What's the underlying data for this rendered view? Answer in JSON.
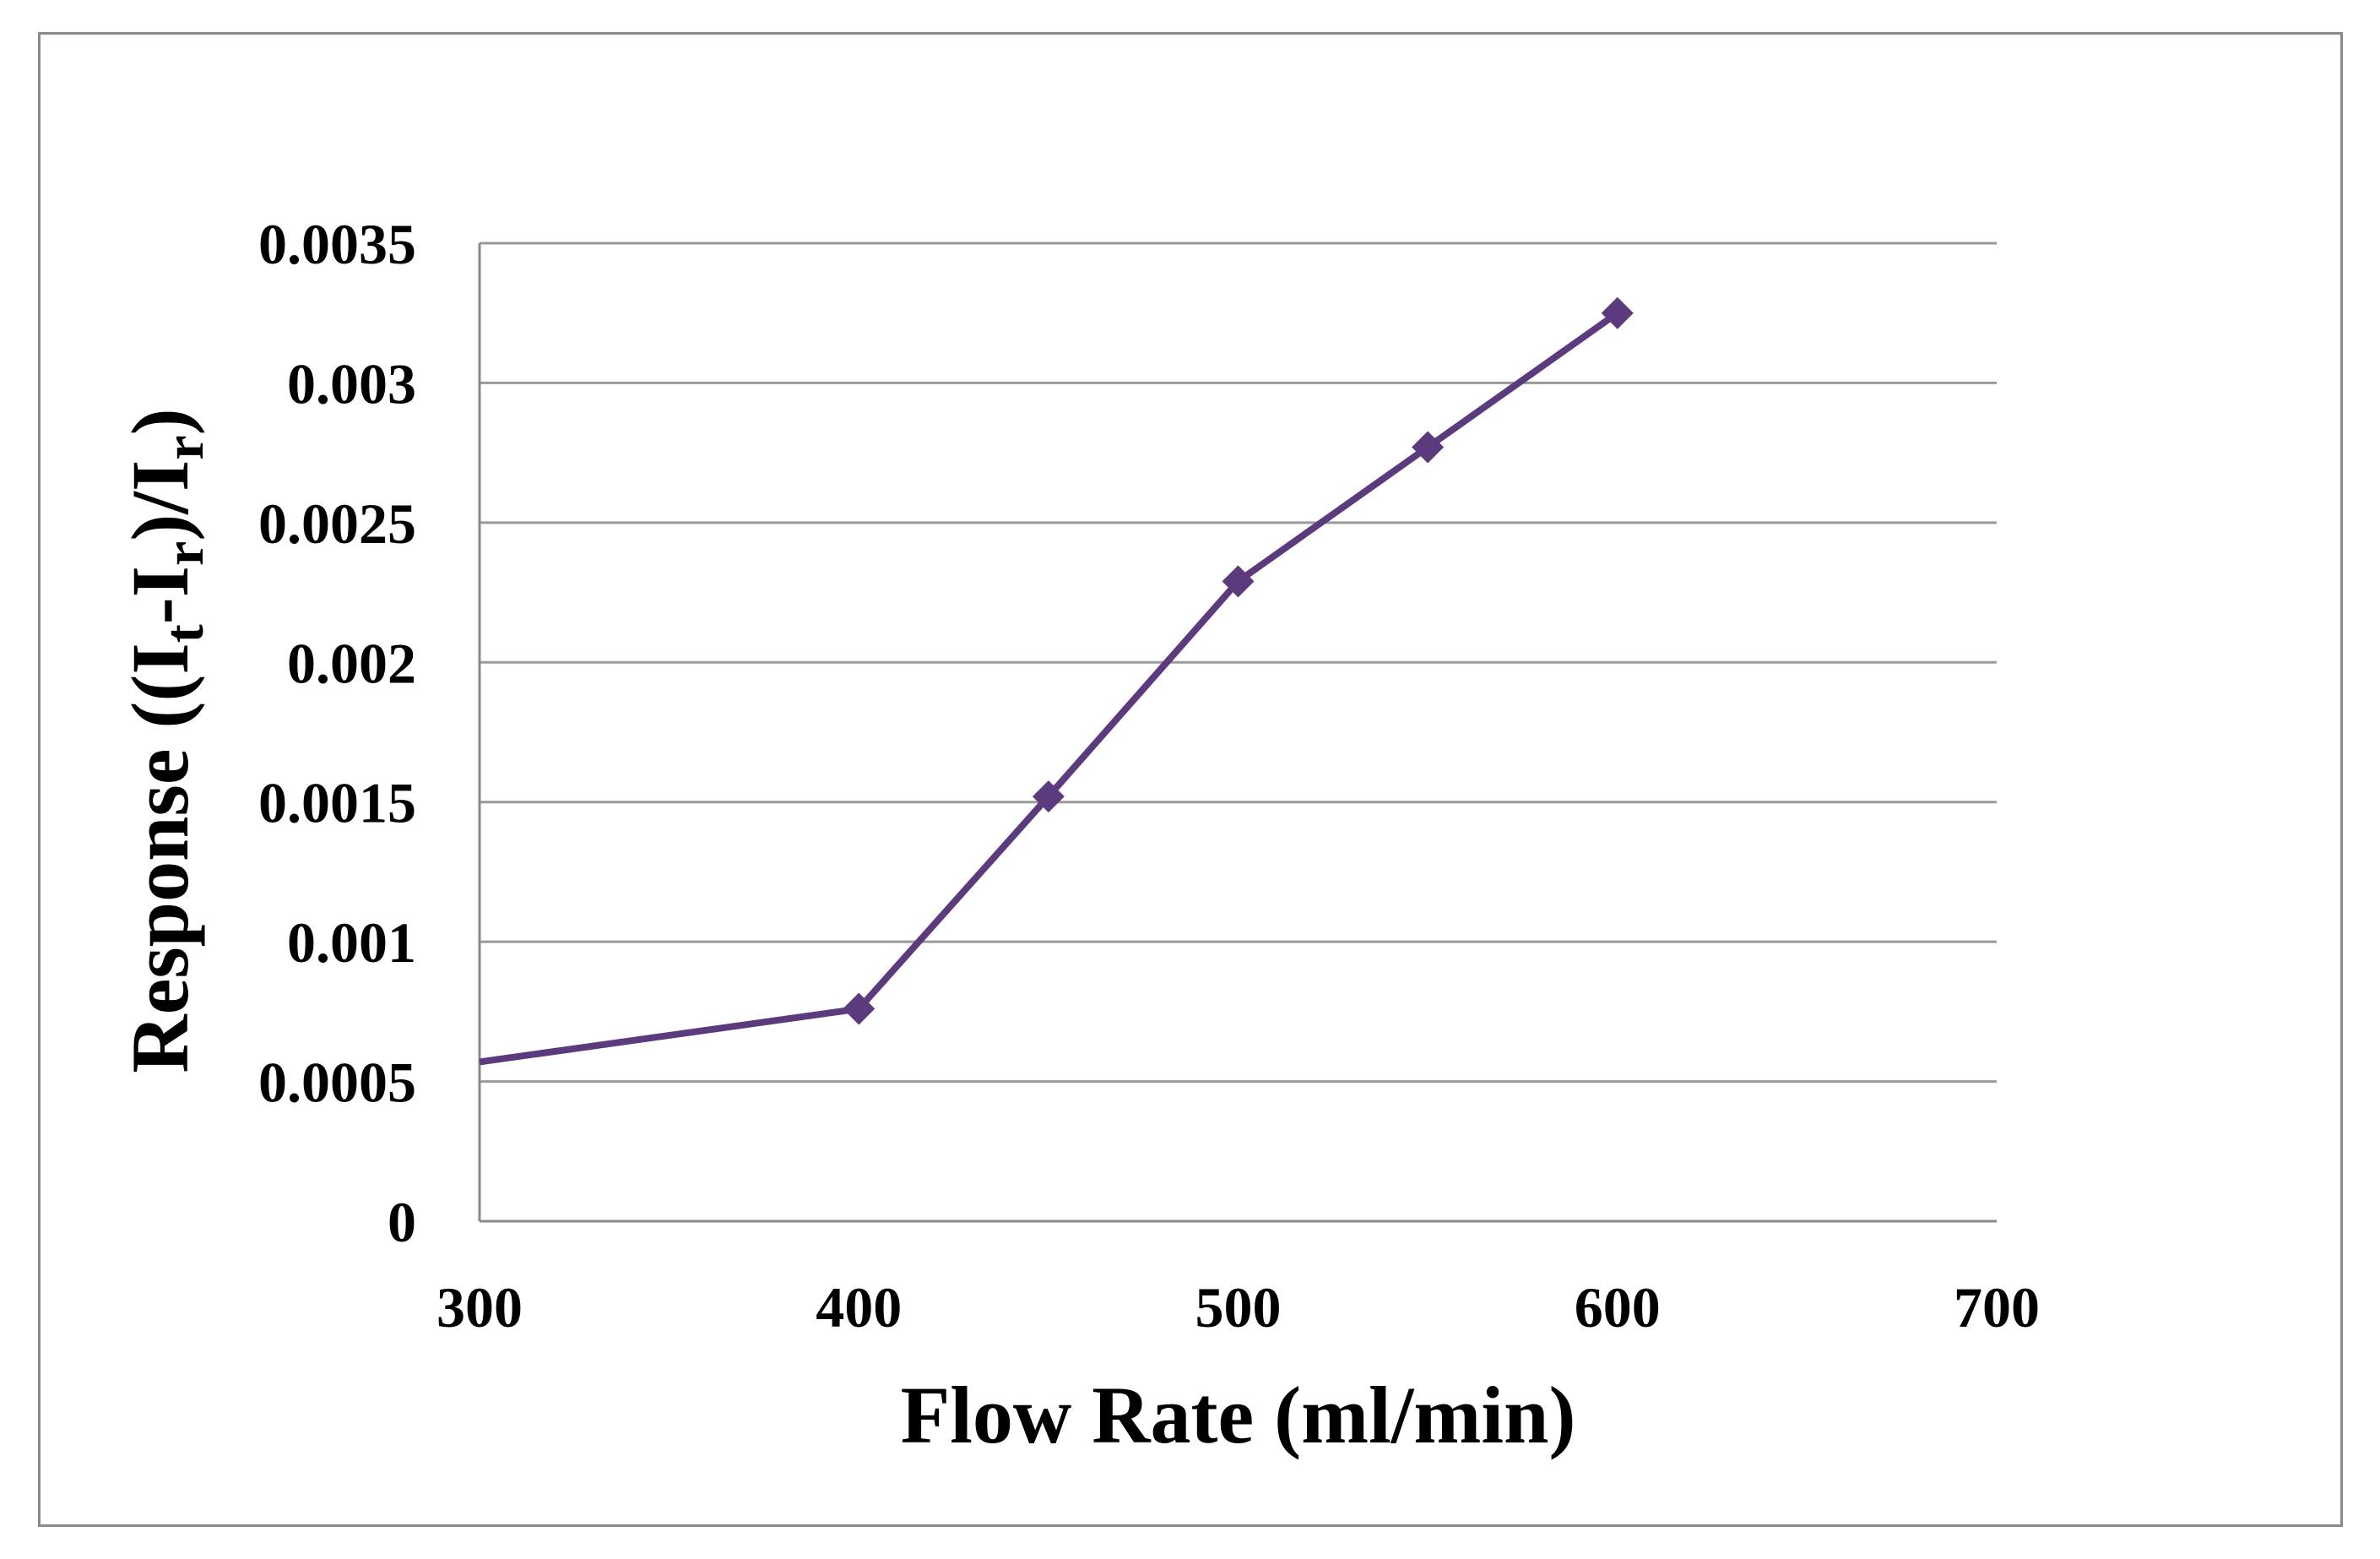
{
  "chart_data": {
    "type": "line",
    "title": "",
    "xlabel": "Flow Rate (ml/min)",
    "ylabel": {
      "parts": [
        {
          "text": "Response ((I",
          "sub": false
        },
        {
          "text": "t",
          "sub": true
        },
        {
          "text": "-I",
          "sub": false
        },
        {
          "text": "r",
          "sub": true
        },
        {
          "text": ")/I",
          "sub": false
        },
        {
          "text": "r",
          "sub": true
        },
        {
          "text": ")",
          "sub": false
        }
      ]
    },
    "xlim": [
      300,
      700
    ],
    "ylim": [
      0,
      0.0035
    ],
    "x_ticks": [
      300,
      400,
      500,
      600,
      700
    ],
    "x_tick_labels": [
      "300",
      "400",
      "500",
      "600",
      "700"
    ],
    "y_ticks": [
      0,
      0.0005,
      0.001,
      0.0015,
      0.002,
      0.0025,
      0.003,
      0.0035
    ],
    "y_tick_labels": [
      "0",
      "0.0005",
      "0.001",
      "0.0015",
      "0.002",
      "0.0025",
      "0.003",
      "0.0035"
    ],
    "grid": true,
    "series": [
      {
        "name": "Response",
        "color": "#5b3a7e",
        "marker": "diamond",
        "x": [
          300,
          400,
          450,
          500,
          550,
          600
        ],
        "y": [
          0.00057,
          0.00076,
          0.00152,
          0.00229,
          0.00277,
          0.00325
        ],
        "marker_mask": [
          false,
          true,
          true,
          true,
          true,
          true
        ]
      }
    ]
  }
}
